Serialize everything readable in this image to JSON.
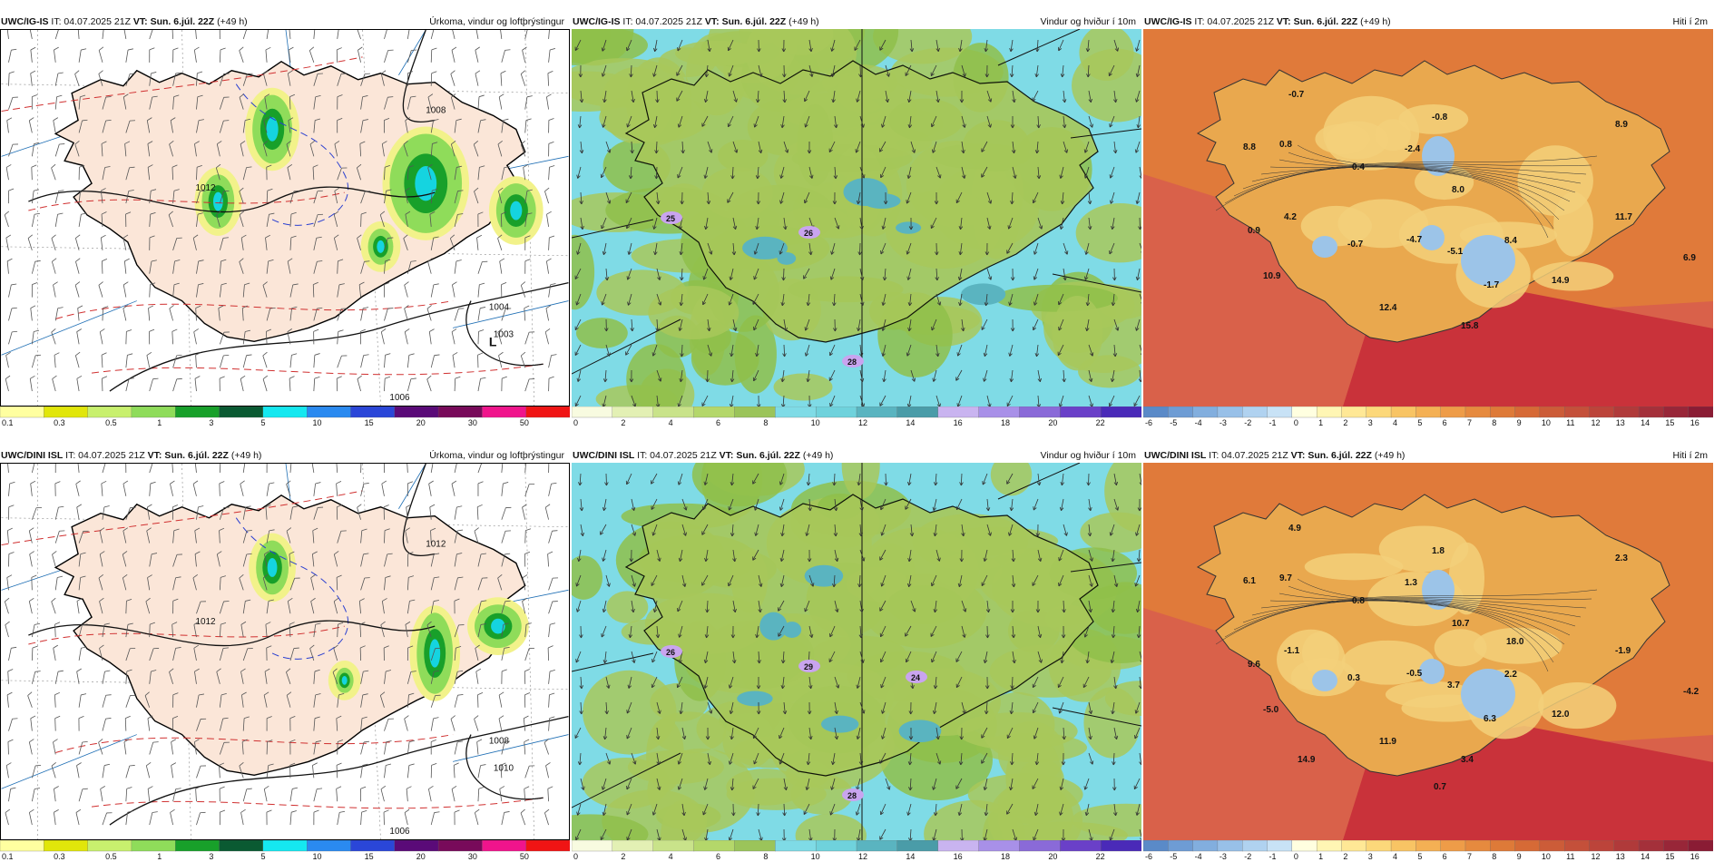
{
  "colors": {
    "land_precip": "#fbe6d8",
    "sea_precip": "#ffffff",
    "wind_low": "#a8c85a",
    "wind_mid": "#8fbf4a",
    "wind_sea": "#7fdbe6",
    "wind_high": "#5ab4c0",
    "temp_warm": "#e07a3a",
    "temp_hot": "#c9323a",
    "temp_cool": "#f3d07a",
    "temp_cold": "#9cc4e8"
  },
  "panels": [
    {
      "model": "UWC/IG-IS",
      "issue": "IT: 04.07.2025 21Z",
      "valid": "VT: Sun. 6.júl. 22Z",
      "lead": "(+49 h)",
      "variable": "Úrkoma, vindur og loftþrýstingur",
      "kind": "precip",
      "pressure_labels": [
        "1012",
        "1008",
        "1004",
        "1003",
        "1006"
      ],
      "low_label": "L",
      "colorbar": [
        "0.1",
        "0.3",
        "0.5",
        "1",
        "3",
        "5",
        "10",
        "15",
        "20",
        "30",
        "50"
      ]
    },
    {
      "model": "UWC/IG-IS",
      "issue": "IT: 04.07.2025 21Z",
      "valid": "VT: Sun. 6.júl. 22Z",
      "lead": "(+49 h)",
      "variable": "Vindur og hviður í 10m",
      "kind": "wind",
      "gust_labels": [
        "25",
        "26",
        "28"
      ],
      "colorbar": [
        "0",
        "2",
        "4",
        "6",
        "8",
        "10",
        "12",
        "14",
        "16",
        "18",
        "20",
        "22"
      ]
    },
    {
      "model": "UWC/IG-IS",
      "issue": "IT: 04.07.2025 21Z",
      "valid": "VT: Sun. 6.júl. 22Z",
      "lead": "(+49 h)",
      "variable": "Hiti í 2m",
      "kind": "temp",
      "temp_labels": [
        "-0.7",
        "-0.8",
        "8.9",
        "8.8",
        "0.8",
        "0.4",
        "-2.4",
        "8.0",
        "0.9",
        "4.2",
        "-0.7",
        "-4.7",
        "-5.1",
        "8.4",
        "11.7",
        "6.9",
        "10.9",
        "-1.7",
        "14.9",
        "12.4",
        "15.8"
      ],
      "colorbar": [
        "-6",
        "-5",
        "-4",
        "-3",
        "-2",
        "-1",
        "0",
        "1",
        "2",
        "3",
        "4",
        "5",
        "6",
        "7",
        "8",
        "9",
        "10",
        "11",
        "12",
        "13",
        "14",
        "15",
        "16"
      ]
    },
    {
      "model": "UWC/DINI ISL",
      "issue": "IT: 04.07.2025 21Z",
      "valid": "VT: Sun. 6.júl. 22Z",
      "lead": "(+49 h)",
      "variable": "Úrkoma, vindur og loftþrýstingur",
      "kind": "precip",
      "pressure_labels": [
        "1012",
        "1012",
        "1008",
        "1010",
        "1006"
      ],
      "low_label": "",
      "colorbar": [
        "0.1",
        "0.3",
        "0.5",
        "1",
        "3",
        "5",
        "10",
        "15",
        "20",
        "30",
        "50"
      ]
    },
    {
      "model": "UWC/DINI ISL",
      "issue": "IT: 04.07.2025 21Z",
      "valid": "VT: Sun. 6.júl. 22Z",
      "lead": "(+49 h)",
      "variable": "Vindur og hviður í 10m",
      "kind": "wind",
      "gust_labels": [
        "26",
        "29",
        "28",
        "24"
      ],
      "colorbar": [
        "0",
        "2",
        "4",
        "6",
        "8",
        "10",
        "12",
        "14",
        "16",
        "18",
        "20",
        "22"
      ]
    },
    {
      "model": "UWC/DINI ISL",
      "issue": "IT: 04.07.2025 21Z",
      "valid": "VT: Sun. 6.júl. 22Z",
      "lead": "(+49 h)",
      "variable": "Hiti í 2m",
      "kind": "temp",
      "temp_labels": [
        "4.9",
        "1.8",
        "2.3",
        "6.1",
        "9.7",
        "0.8",
        "1.3",
        "10.7",
        "9.6",
        "-1.1",
        "0.3",
        "-0.5",
        "3.7",
        "2.2",
        "-1.9",
        "-4.2",
        "-5.0",
        "6.3",
        "12.0",
        "11.9",
        "3.4",
        "14.9",
        "0.7",
        "18.0"
      ],
      "colorbar": [
        "-6",
        "-5",
        "-4",
        "-3",
        "-2",
        "-1",
        "0",
        "1",
        "2",
        "3",
        "4",
        "5",
        "6",
        "7",
        "8",
        "9",
        "10",
        "11",
        "12",
        "13",
        "14",
        "15",
        "16"
      ]
    }
  ]
}
